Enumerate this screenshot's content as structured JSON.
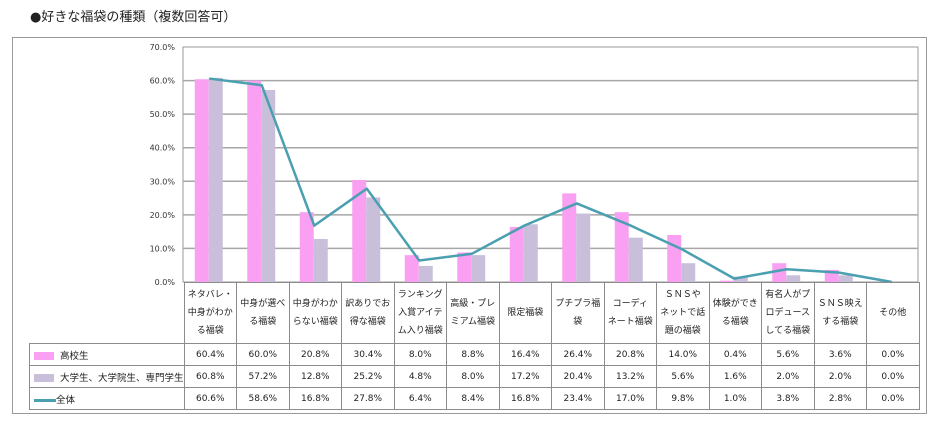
{
  "title": "●好きな福袋の種類（複数回答可）",
  "colors": {
    "high_school": "#f9a0f2",
    "university": "#c9bfda",
    "overall": "#4a9fb0"
  },
  "legend": {
    "high_school": "高校生",
    "university": "大学生、大学院生、専門学生",
    "overall": "全体"
  },
  "y_ticks": [
    "70.0%",
    "60.0%",
    "50.0%",
    "40.0%",
    "30.0%",
    "20.0%",
    "10.0%",
    "0.0%"
  ],
  "categories": [
    [
      "ネタバレ・",
      "中身がわか",
      "る福袋"
    ],
    [
      "中身が選べ",
      "る福袋"
    ],
    [
      "中身がわか",
      "らない福袋"
    ],
    [
      "訳ありでお",
      "得な福袋"
    ],
    [
      "ランキング",
      "入賞アイテ",
      "ム入り福袋"
    ],
    [
      "高級・プレ",
      "ミアム福袋"
    ],
    [
      "限定福袋"
    ],
    [
      "プチプラ福",
      "袋"
    ],
    [
      "コーディ",
      "ネート福袋"
    ],
    [
      "ＳＮＳや",
      "ネットで話",
      "題の福袋"
    ],
    [
      "体験ができ",
      "る福袋"
    ],
    [
      "有名人がプ",
      "ロデュース",
      "してる福袋"
    ],
    [
      "ＳＮＳ映え",
      "する福袋"
    ],
    [
      "その他"
    ]
  ],
  "rows": {
    "high_school": [
      "60.4%",
      "60.0%",
      "20.8%",
      "30.4%",
      "8.0%",
      "8.8%",
      "16.4%",
      "26.4%",
      "20.8%",
      "14.0%",
      "0.4%",
      "5.6%",
      "3.6%",
      "0.0%"
    ],
    "university": [
      "60.8%",
      "57.2%",
      "12.8%",
      "25.2%",
      "4.8%",
      "8.0%",
      "17.2%",
      "20.4%",
      "13.2%",
      "5.6%",
      "1.6%",
      "2.0%",
      "2.0%",
      "0.0%"
    ],
    "overall": [
      "60.6%",
      "58.6%",
      "16.8%",
      "27.8%",
      "6.4%",
      "8.4%",
      "16.8%",
      "23.4%",
      "17.0%",
      "9.8%",
      "1.0%",
      "3.8%",
      "2.8%",
      "0.0%"
    ]
  },
  "chart_data": {
    "type": "bar",
    "title": "●好きな福袋の種類（複数回答可）",
    "xlabel": "",
    "ylabel": "",
    "ylim": [
      0,
      70
    ],
    "y_tick_step": 10,
    "grid": true,
    "legend_position": "data-table",
    "categories": [
      "ネタバレ・中身がわかる福袋",
      "中身が選べる福袋",
      "中身がわからない福袋",
      "訳ありでお得な福袋",
      "ランキング入賞アイテム入り福袋",
      "高級・プレミアム福袋",
      "限定福袋",
      "プチプラ福袋",
      "コーディネート福袋",
      "ＳＮＳやネットで話題の福袋",
      "体験ができる福袋",
      "有名人がプロデュースしてる福袋",
      "ＳＮＳ映えする福袋",
      "その他"
    ],
    "series": [
      {
        "name": "高校生",
        "type": "bar",
        "values": [
          60.4,
          60.0,
          20.8,
          30.4,
          8.0,
          8.8,
          16.4,
          26.4,
          20.8,
          14.0,
          0.4,
          5.6,
          3.6,
          0.0
        ]
      },
      {
        "name": "大学生、大学院生、専門学生",
        "type": "bar",
        "values": [
          60.8,
          57.2,
          12.8,
          25.2,
          4.8,
          8.0,
          17.2,
          20.4,
          13.2,
          5.6,
          1.6,
          2.0,
          2.0,
          0.0
        ]
      },
      {
        "name": "全体",
        "type": "line",
        "values": [
          60.6,
          58.6,
          16.8,
          27.8,
          6.4,
          8.4,
          16.8,
          23.4,
          17.0,
          9.8,
          1.0,
          3.8,
          2.8,
          0.0
        ]
      }
    ]
  }
}
